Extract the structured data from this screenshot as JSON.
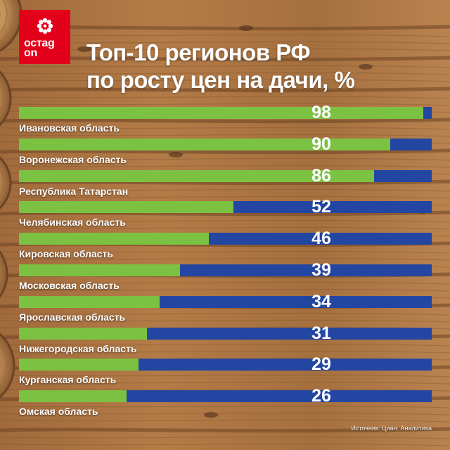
{
  "brand": {
    "logo_text_line1": "остаg",
    "logo_text_line2": "on",
    "logo_color": "#e3001b"
  },
  "chart_data": {
    "type": "bar",
    "orientation": "horizontal",
    "title_line1": "Топ-10 регионов РФ",
    "title_line2": "по росту цен на дачи, %",
    "categories": [
      "Ивановская область",
      "Воронежская область",
      "Республика Татарстан",
      "Челябинская область",
      "Кировская область",
      "Московская область",
      "Ярославская область",
      "Нижегородская область",
      "Курганская область",
      "Омская область"
    ],
    "values": [
      98,
      90,
      86,
      52,
      46,
      39,
      34,
      31,
      29,
      26
    ],
    "xlim": [
      0,
      100
    ],
    "grid": false,
    "legend": "none",
    "bar_color": "#7cc242",
    "track_color": "#2446a3",
    "value_label_color": "#ffffff",
    "source": "Источник: Циан. Аналитика"
  }
}
